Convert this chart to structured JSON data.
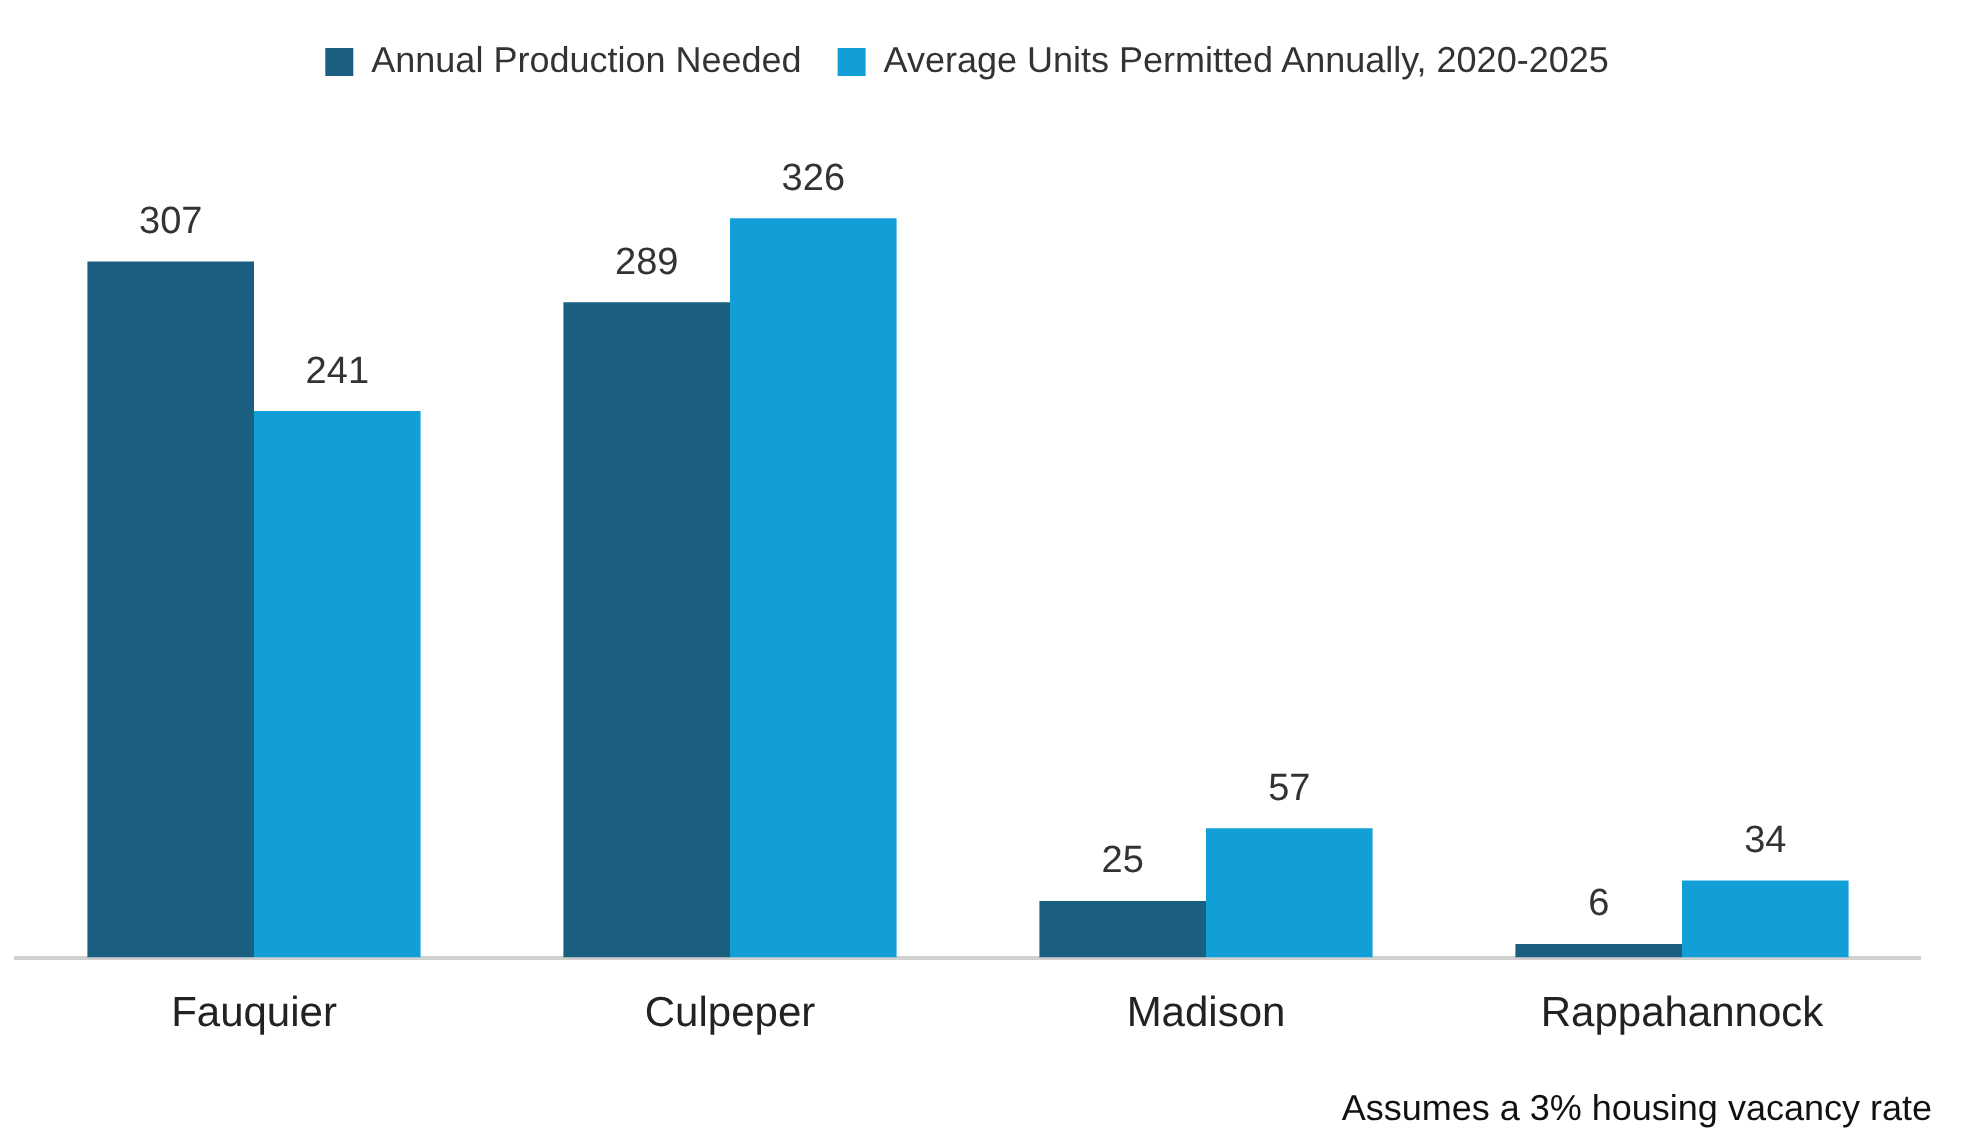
{
  "chart_data": {
    "type": "bar",
    "categories": [
      "Fauquier",
      "Culpeper",
      "Madison",
      "Rappahannock"
    ],
    "series": [
      {
        "name": "Annual Production Needed",
        "color": "#1a5e80",
        "values": [
          307,
          289,
          25,
          6
        ]
      },
      {
        "name": "Average Units Permitted Annually, 2020-2025",
        "color": "#129fd8",
        "values": [
          241,
          326,
          57,
          34
        ]
      }
    ],
    "data_labels": true,
    "legend": "top",
    "grid": false,
    "tick_labels": "x",
    "annotations": [
      "Assumes a 3% housing vacancy rate"
    ]
  }
}
